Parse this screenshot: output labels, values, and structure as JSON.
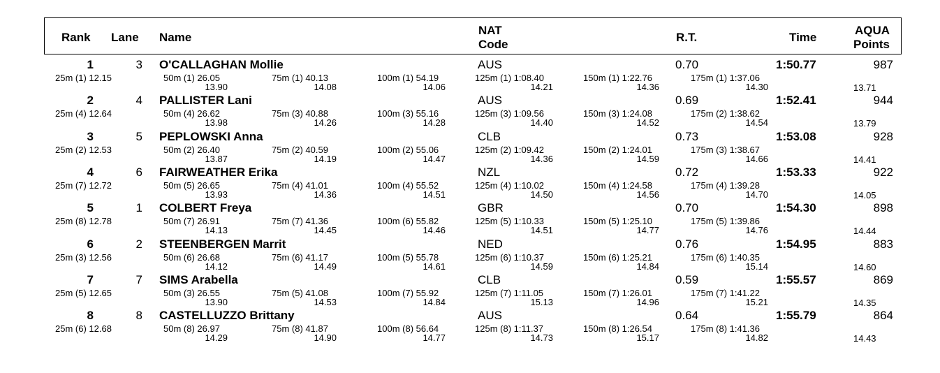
{
  "header": {
    "rank": "Rank",
    "lane": "Lane",
    "name": "Name",
    "nat_line1": "NAT",
    "nat_line2": "Code",
    "rt": "R.T.",
    "time": "Time",
    "aqua_line1": "AQUA",
    "aqua_line2": "Points"
  },
  "results": [
    {
      "rank": "1",
      "lane": "3",
      "name": "O'CALLAGHAN Mollie",
      "nat": "AUS",
      "rt": "0.70",
      "time": "1:50.77",
      "points": "987",
      "lap_end": "13.71",
      "s25": "25m (1) 12.15",
      "splits": [
        {
          "cum": "50m (1) 26.05",
          "lap": "13.90"
        },
        {
          "cum": "75m (1) 40.13",
          "lap": "14.08"
        },
        {
          "cum": "100m (1) 54.19",
          "lap": "14.06"
        },
        {
          "cum": "125m (1) 1:08.40",
          "lap": "14.21"
        },
        {
          "cum": "150m (1) 1:22.76",
          "lap": "14.36"
        },
        {
          "cum": "175m (1) 1:37.06",
          "lap": "14.30"
        }
      ]
    },
    {
      "rank": "2",
      "lane": "4",
      "name": "PALLISTER Lani",
      "nat": "AUS",
      "rt": "0.69",
      "time": "1:52.41",
      "points": "944",
      "lap_end": "13.79",
      "s25": "25m (4) 12.64",
      "splits": [
        {
          "cum": "50m (4) 26.62",
          "lap": "13.98"
        },
        {
          "cum": "75m (3) 40.88",
          "lap": "14.26"
        },
        {
          "cum": "100m (3) 55.16",
          "lap": "14.28"
        },
        {
          "cum": "125m (3) 1:09.56",
          "lap": "14.40"
        },
        {
          "cum": "150m (3) 1:24.08",
          "lap": "14.52"
        },
        {
          "cum": "175m (2) 1:38.62",
          "lap": "14.54"
        }
      ]
    },
    {
      "rank": "3",
      "lane": "5",
      "name": "PEPLOWSKI Anna",
      "nat": "CLB",
      "rt": "0.73",
      "time": "1:53.08",
      "points": "928",
      "lap_end": "14.41",
      "s25": "25m (2) 12.53",
      "splits": [
        {
          "cum": "50m (2) 26.40",
          "lap": "13.87"
        },
        {
          "cum": "75m (2) 40.59",
          "lap": "14.19"
        },
        {
          "cum": "100m (2) 55.06",
          "lap": "14.47"
        },
        {
          "cum": "125m (2) 1:09.42",
          "lap": "14.36"
        },
        {
          "cum": "150m (2) 1:24.01",
          "lap": "14.59"
        },
        {
          "cum": "175m (3) 1:38.67",
          "lap": "14.66"
        }
      ]
    },
    {
      "rank": "4",
      "lane": "6",
      "name": "FAIRWEATHER Erika",
      "nat": "NZL",
      "rt": "0.72",
      "time": "1:53.33",
      "points": "922",
      "lap_end": "14.05",
      "s25": "25m (7) 12.72",
      "splits": [
        {
          "cum": "50m (5) 26.65",
          "lap": "13.93"
        },
        {
          "cum": "75m (4) 41.01",
          "lap": "14.36"
        },
        {
          "cum": "100m (4) 55.52",
          "lap": "14.51"
        },
        {
          "cum": "125m (4) 1:10.02",
          "lap": "14.50"
        },
        {
          "cum": "150m (4) 1:24.58",
          "lap": "14.56"
        },
        {
          "cum": "175m (4) 1:39.28",
          "lap": "14.70"
        }
      ]
    },
    {
      "rank": "5",
      "lane": "1",
      "name": "COLBERT Freya",
      "nat": "GBR",
      "rt": "0.70",
      "time": "1:54.30",
      "points": "898",
      "lap_end": "14.44",
      "s25": "25m (8) 12.78",
      "splits": [
        {
          "cum": "50m (7) 26.91",
          "lap": "14.13"
        },
        {
          "cum": "75m (7) 41.36",
          "lap": "14.45"
        },
        {
          "cum": "100m (6) 55.82",
          "lap": "14.46"
        },
        {
          "cum": "125m (5) 1:10.33",
          "lap": "14.51"
        },
        {
          "cum": "150m (5) 1:25.10",
          "lap": "14.77"
        },
        {
          "cum": "175m (5) 1:39.86",
          "lap": "14.76"
        }
      ]
    },
    {
      "rank": "6",
      "lane": "2",
      "name": "STEENBERGEN Marrit",
      "nat": "NED",
      "rt": "0.76",
      "time": "1:54.95",
      "points": "883",
      "lap_end": "14.60",
      "s25": "25m (3) 12.56",
      "splits": [
        {
          "cum": "50m (6) 26.68",
          "lap": "14.12"
        },
        {
          "cum": "75m (6) 41.17",
          "lap": "14.49"
        },
        {
          "cum": "100m (5) 55.78",
          "lap": "14.61"
        },
        {
          "cum": "125m (6) 1:10.37",
          "lap": "14.59"
        },
        {
          "cum": "150m (6) 1:25.21",
          "lap": "14.84"
        },
        {
          "cum": "175m (6) 1:40.35",
          "lap": "15.14"
        }
      ]
    },
    {
      "rank": "7",
      "lane": "7",
      "name": "SIMS Arabella",
      "nat": "CLB",
      "rt": "0.59",
      "time": "1:55.57",
      "points": "869",
      "lap_end": "14.35",
      "s25": "25m (5) 12.65",
      "splits": [
        {
          "cum": "50m (3) 26.55",
          "lap": "13.90"
        },
        {
          "cum": "75m (5) 41.08",
          "lap": "14.53"
        },
        {
          "cum": "100m (7) 55.92",
          "lap": "14.84"
        },
        {
          "cum": "125m (7) 1:11.05",
          "lap": "15.13"
        },
        {
          "cum": "150m (7) 1:26.01",
          "lap": "14.96"
        },
        {
          "cum": "175m (7) 1:41.22",
          "lap": "15.21"
        }
      ]
    },
    {
      "rank": "8",
      "lane": "8",
      "name": "CASTELLUZZO Brittany",
      "nat": "AUS",
      "rt": "0.64",
      "time": "1:55.79",
      "points": "864",
      "lap_end": "14.43",
      "s25": "25m (6) 12.68",
      "splits": [
        {
          "cum": "50m (8) 26.97",
          "lap": "14.29"
        },
        {
          "cum": "75m (8) 41.87",
          "lap": "14.90"
        },
        {
          "cum": "100m (8) 56.64",
          "lap": "14.77"
        },
        {
          "cum": "125m (8) 1:11.37",
          "lap": "14.73"
        },
        {
          "cum": "150m (8) 1:26.54",
          "lap": "15.17"
        },
        {
          "cum": "175m (8) 1:41.36",
          "lap": "14.82"
        }
      ]
    }
  ]
}
